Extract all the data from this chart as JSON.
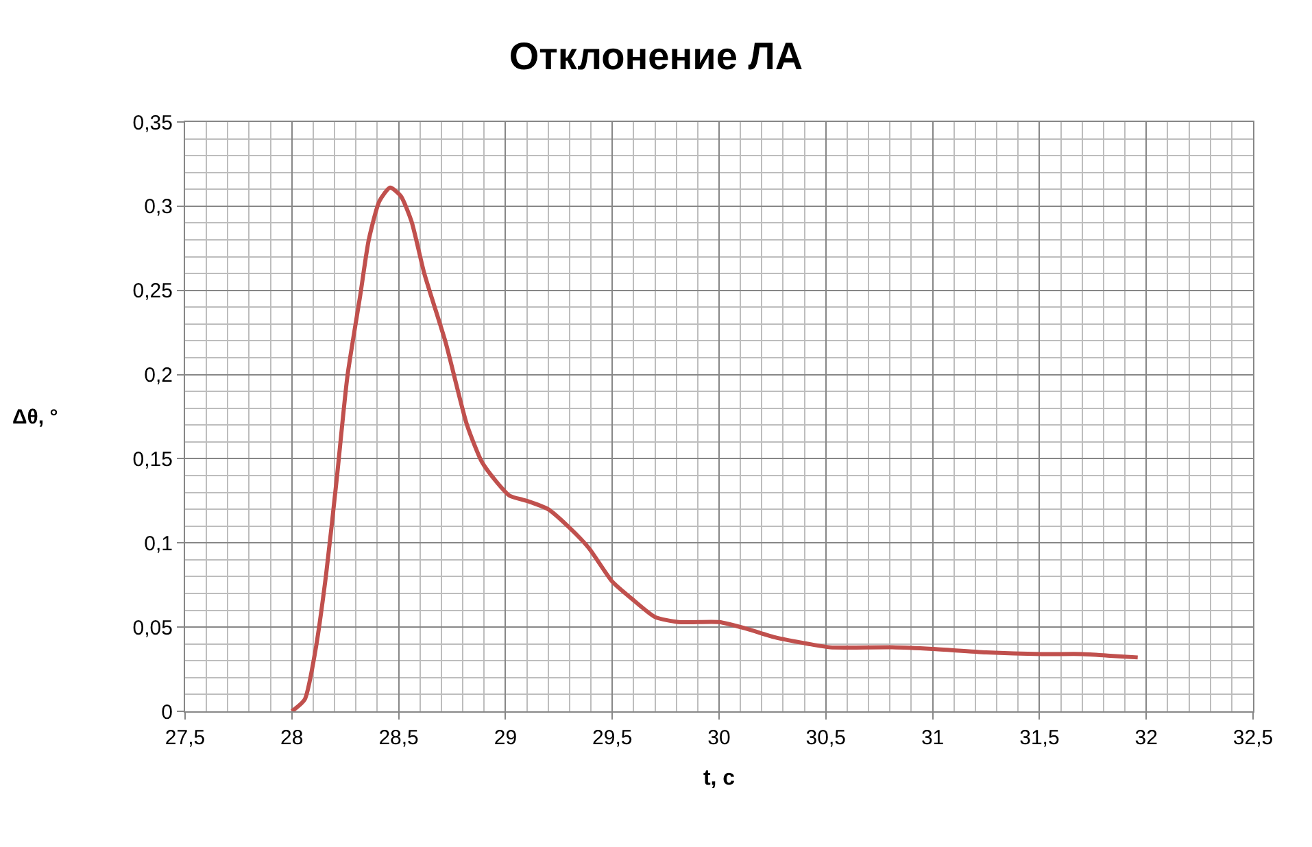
{
  "chart_data": {
    "type": "line",
    "title": "Отклонение ЛА",
    "xlabel": "t, с",
    "ylabel": "Δθ, °",
    "x": [
      28.0,
      28.06,
      28.11,
      28.16,
      28.21,
      28.26,
      28.32,
      28.36,
      28.41,
      28.46,
      28.51,
      28.56,
      28.62,
      28.72,
      28.82,
      28.89,
      28.96,
      29.02,
      29.1,
      29.2,
      29.3,
      29.39,
      29.5,
      29.59,
      29.7,
      29.81,
      30.0,
      30.13,
      30.26,
      30.42,
      30.52,
      30.81,
      31.0,
      31.25,
      31.51,
      31.7,
      31.83,
      31.96
    ],
    "series": [
      {
        "color": "#c0504d",
        "values": [
          0,
          0.007,
          0.036,
          0.081,
          0.138,
          0.199,
          0.247,
          0.28,
          0.303,
          0.311,
          0.306,
          0.291,
          0.26,
          0.219,
          0.17,
          0.148,
          0.136,
          0.128,
          0.125,
          0.12,
          0.109,
          0.097,
          0.077,
          0.067,
          0.056,
          0.053,
          0.053,
          0.049,
          0.044,
          0.04,
          0.038,
          0.038,
          0.037,
          0.035,
          0.034,
          0.034,
          0.033,
          0.032
        ]
      }
    ],
    "xlim": [
      27.5,
      32.5
    ],
    "xticks": [
      {
        "value": 27.5,
        "label": "27,5"
      },
      28,
      {
        "value": 28.5,
        "label": "28,5"
      },
      29,
      {
        "value": 29.5,
        "label": "29,5"
      },
      30,
      {
        "value": 30.5,
        "label": "30,5"
      },
      31,
      {
        "value": 31.5,
        "label": "31,5"
      },
      32,
      {
        "value": 32.5,
        "label": "32,5"
      }
    ],
    "ylim": [
      0,
      0.35
    ],
    "yticks": [
      0,
      {
        "value": 0.05,
        "label": "0,05"
      },
      {
        "value": 0.1,
        "label": "0,1"
      },
      {
        "value": 0.15,
        "label": "0,15"
      },
      {
        "value": 0.2,
        "label": "0,2"
      },
      {
        "value": 0.25,
        "label": "0,25"
      },
      {
        "value": 0.3,
        "label": "0,3"
      },
      {
        "value": 0.35,
        "label": "0,35"
      }
    ],
    "grid": true,
    "legend": false,
    "marker": "none",
    "line_style": "solid"
  }
}
